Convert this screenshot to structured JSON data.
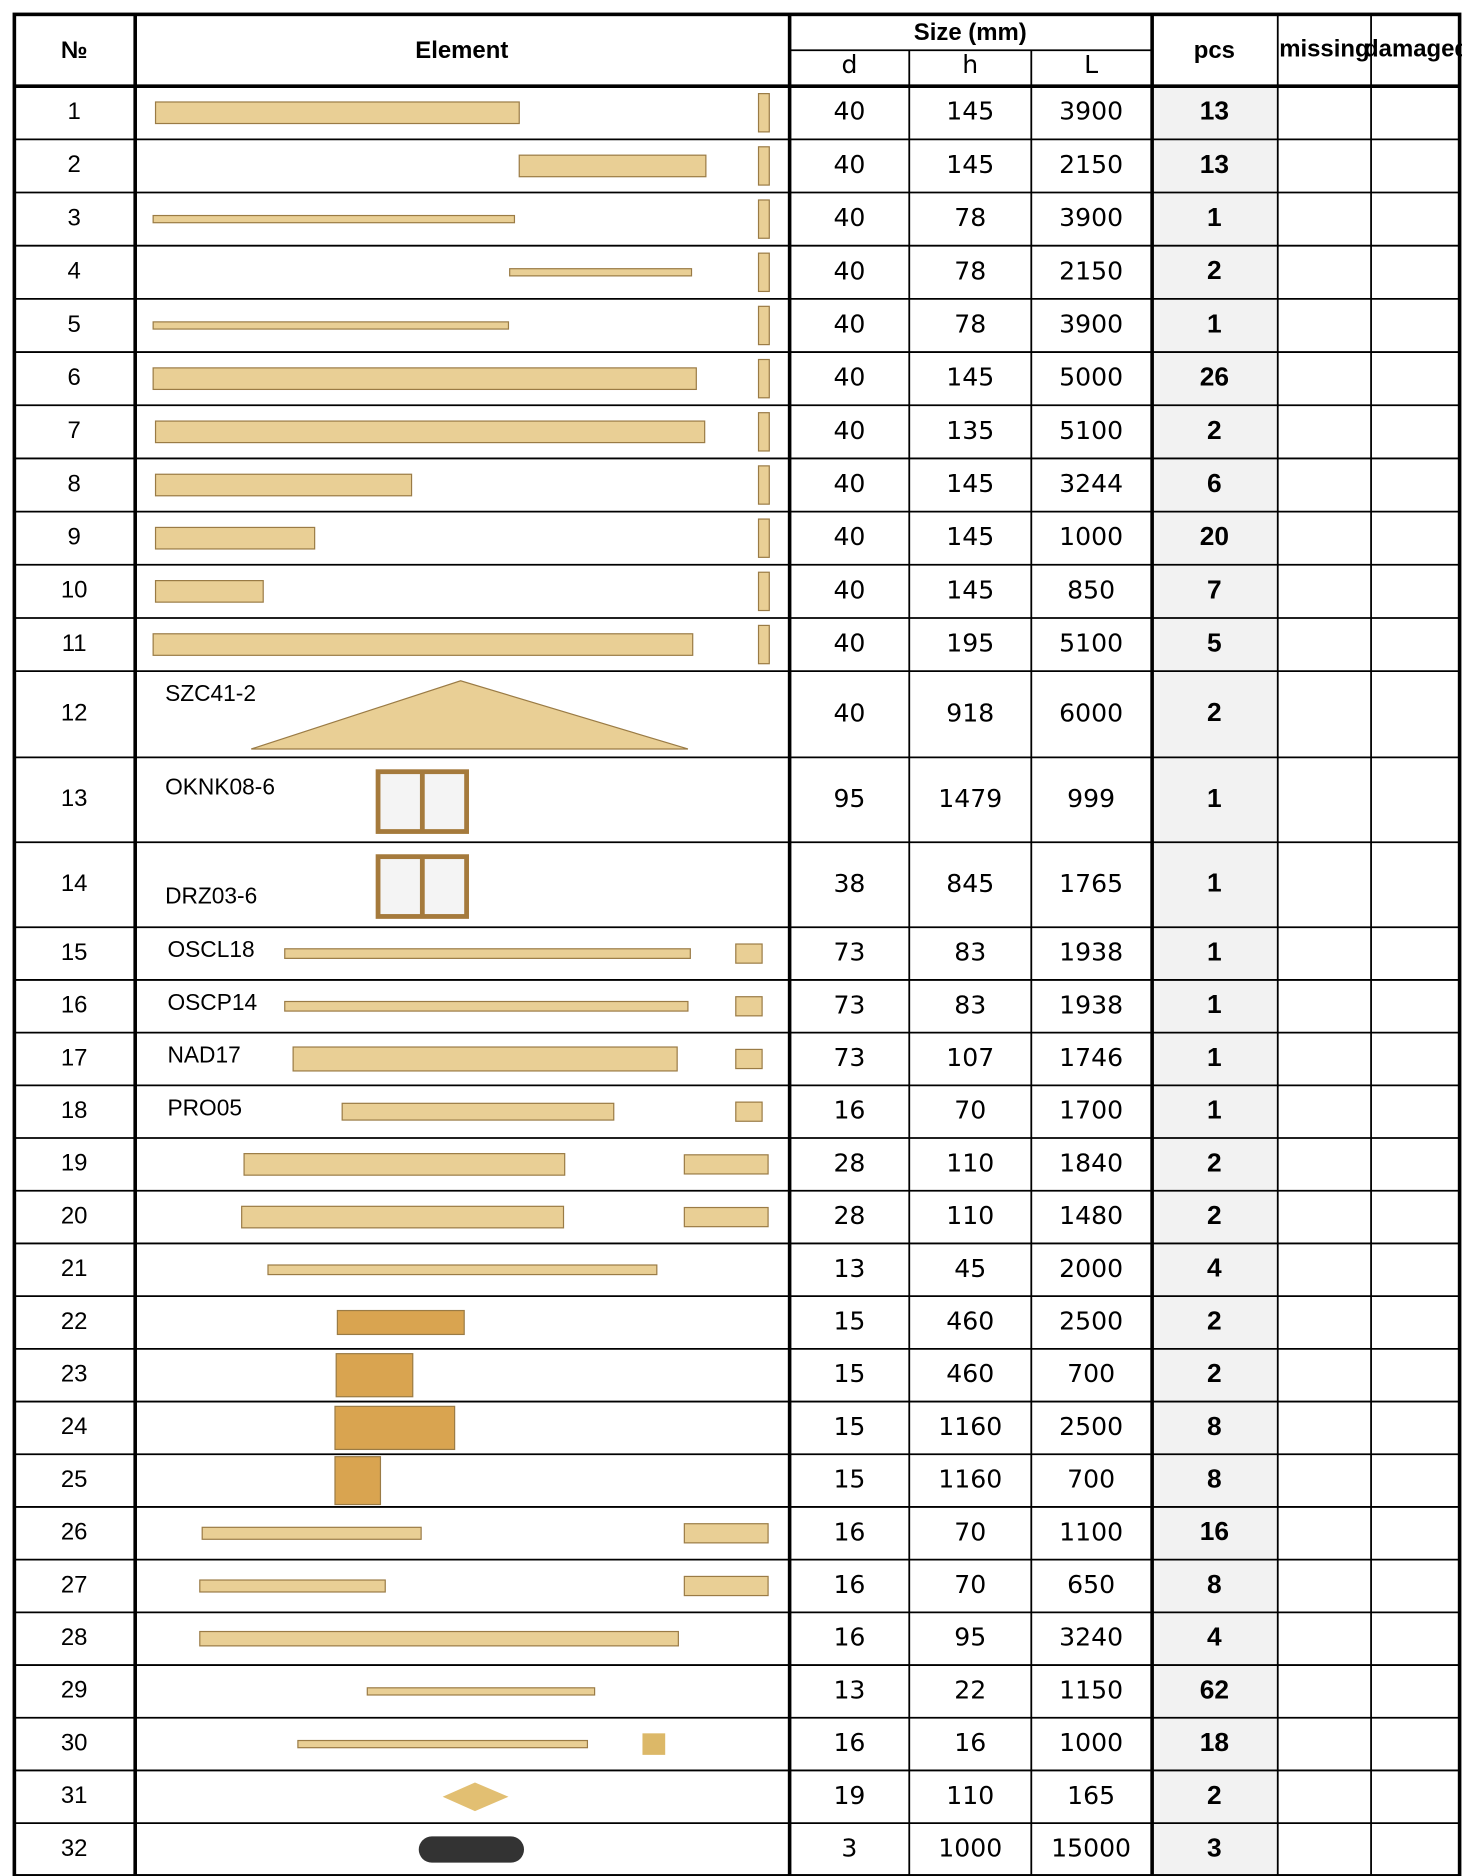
{
  "table": {
    "header": {
      "no": "№",
      "element": "Element",
      "size": "Size (mm)",
      "d": "d",
      "h": "h",
      "L": "L",
      "pcs": "pcs",
      "missing": "missing",
      "damaged": "damaged"
    },
    "rows": [
      {
        "no": 1,
        "d": 40,
        "h": 145,
        "L": 3900,
        "pcs": 13
      },
      {
        "no": 2,
        "d": 40,
        "h": 145,
        "L": 2150,
        "pcs": 13
      },
      {
        "no": 3,
        "d": 40,
        "h": 78,
        "L": 3900,
        "pcs": 1
      },
      {
        "no": 4,
        "d": 40,
        "h": 78,
        "L": 2150,
        "pcs": 2
      },
      {
        "no": 5,
        "d": 40,
        "h": 78,
        "L": 3900,
        "pcs": 1
      },
      {
        "no": 6,
        "d": 40,
        "h": 145,
        "L": 5000,
        "pcs": 26
      },
      {
        "no": 7,
        "d": 40,
        "h": 135,
        "L": 5100,
        "pcs": 2
      },
      {
        "no": 8,
        "d": 40,
        "h": 145,
        "L": 3244,
        "pcs": 6
      },
      {
        "no": 9,
        "d": 40,
        "h": 145,
        "L": 1000,
        "pcs": 20
      },
      {
        "no": 10,
        "d": 40,
        "h": 145,
        "L": 850,
        "pcs": 7
      },
      {
        "no": 11,
        "d": 40,
        "h": 195,
        "L": 5100,
        "pcs": 5
      },
      {
        "no": 12,
        "label": "SZC41-2",
        "d": 40,
        "h": 918,
        "L": 6000,
        "pcs": 2
      },
      {
        "no": 13,
        "label": "OKNK08-6",
        "d": 95,
        "h": 1479,
        "L": 999,
        "pcs": 1
      },
      {
        "no": 14,
        "label": "DRZ03-6",
        "d": 38,
        "h": 845,
        "L": 1765,
        "pcs": 1
      },
      {
        "no": 15,
        "label": "OSCL18",
        "d": 73,
        "h": 83,
        "L": 1938,
        "pcs": 1
      },
      {
        "no": 16,
        "label": "OSCP14",
        "d": 73,
        "h": 83,
        "L": 1938,
        "pcs": 1
      },
      {
        "no": 17,
        "label": "NAD17",
        "d": 73,
        "h": 107,
        "L": 1746,
        "pcs": 1
      },
      {
        "no": 18,
        "label": "PRO05",
        "d": 16,
        "h": 70,
        "L": 1700,
        "pcs": 1
      },
      {
        "no": 19,
        "d": 28,
        "h": 110,
        "L": 1840,
        "pcs": 2
      },
      {
        "no": 20,
        "d": 28,
        "h": 110,
        "L": 1480,
        "pcs": 2
      },
      {
        "no": 21,
        "d": 13,
        "h": 45,
        "L": 2000,
        "pcs": 4
      },
      {
        "no": 22,
        "d": 15,
        "h": 460,
        "L": 2500,
        "pcs": 2
      },
      {
        "no": 23,
        "d": 15,
        "h": 460,
        "L": 700,
        "pcs": 2
      },
      {
        "no": 24,
        "d": 15,
        "h": 1160,
        "L": 2500,
        "pcs": 8
      },
      {
        "no": 25,
        "d": 15,
        "h": 1160,
        "L": 700,
        "pcs": 8
      },
      {
        "no": 26,
        "d": 16,
        "h": 70,
        "L": 1100,
        "pcs": 16
      },
      {
        "no": 27,
        "d": 16,
        "h": 70,
        "L": 650,
        "pcs": 8
      },
      {
        "no": 28,
        "d": 16,
        "h": 95,
        "L": 3240,
        "pcs": 4
      },
      {
        "no": 29,
        "d": 13,
        "h": 22,
        "L": 1150,
        "pcs": 62
      },
      {
        "no": 30,
        "d": 16,
        "h": 16,
        "L": 1000,
        "pcs": 18
      },
      {
        "no": 31,
        "d": 19,
        "h": 110,
        "L": 165,
        "pcs": 2
      },
      {
        "no": 32,
        "d": 3,
        "h": 1000,
        "L": 15000,
        "pcs": 3
      }
    ]
  }
}
